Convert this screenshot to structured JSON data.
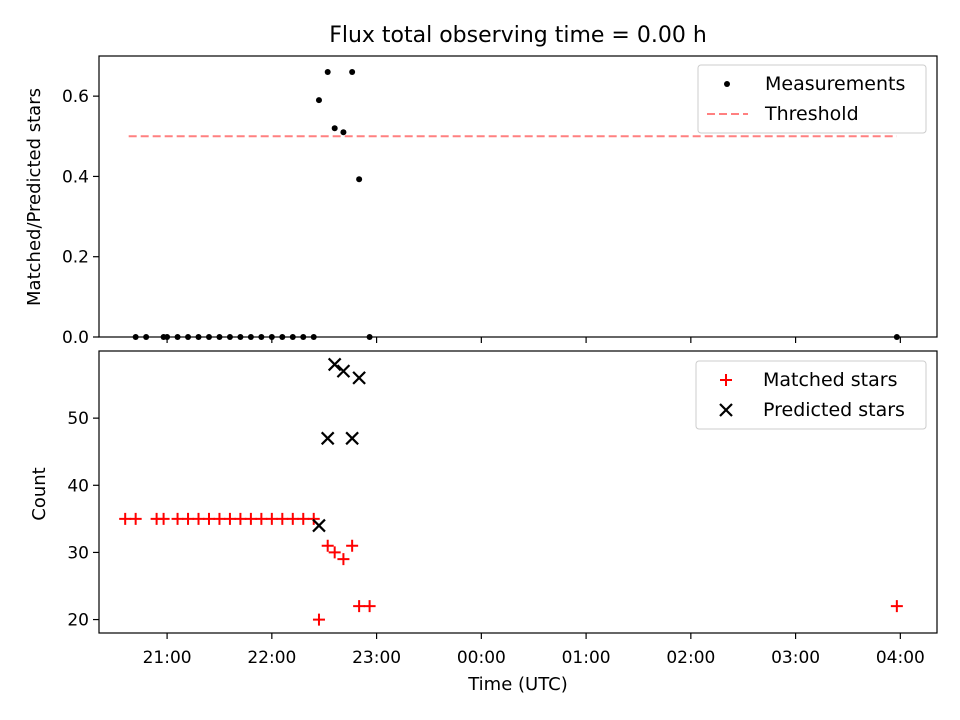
{
  "figure": {
    "title": "Flux total observing time = 0.00 h"
  },
  "chart_data": [
    {
      "type": "scatter",
      "ylabel": "Matched/Predicted stars",
      "ylim": [
        0,
        0.7
      ],
      "yticks": [
        0.0,
        0.2,
        0.4,
        0.6
      ],
      "ytick_labels": [
        "0.0",
        "0.2",
        "0.4",
        "0.6"
      ],
      "xlim": [
        "20:21",
        "04:21"
      ],
      "grid": false,
      "legend_position": "top-right",
      "series": [
        {
          "name": "Measurements",
          "marker": "dot",
          "color": "#000000",
          "points": [
            [
              "20:42",
              0.0
            ],
            [
              "20:48",
              0.0
            ],
            [
              "20:58",
              0.0
            ],
            [
              "21:00",
              0.0
            ],
            [
              "21:06",
              0.0
            ],
            [
              "21:12",
              0.0
            ],
            [
              "21:18",
              0.0
            ],
            [
              "21:24",
              0.0
            ],
            [
              "21:30",
              0.0
            ],
            [
              "21:36",
              0.0
            ],
            [
              "21:42",
              0.0
            ],
            [
              "21:48",
              0.0
            ],
            [
              "21:54",
              0.0
            ],
            [
              "22:00",
              0.0
            ],
            [
              "22:06",
              0.0
            ],
            [
              "22:12",
              0.0
            ],
            [
              "22:18",
              0.0
            ],
            [
              "22:24",
              0.0
            ],
            [
              "22:27",
              0.59
            ],
            [
              "22:32",
              0.66
            ],
            [
              "22:36",
              0.52
            ],
            [
              "22:41",
              0.51
            ],
            [
              "22:46",
              0.66
            ],
            [
              "22:50",
              0.393
            ],
            [
              "22:56",
              0.0
            ],
            [
              "03:58",
              0.0
            ]
          ]
        },
        {
          "name": "Threshold",
          "style": "dashed",
          "color": "#ff8080",
          "points": [
            [
              "20:38",
              0.5
            ],
            [
              "03:58",
              0.5
            ]
          ]
        }
      ]
    },
    {
      "type": "scatter",
      "xlabel": "Time (UTC)",
      "ylabel": "Count",
      "ylim": [
        18,
        60
      ],
      "yticks": [
        20,
        30,
        40,
        50
      ],
      "xlim": [
        "20:21",
        "04:21"
      ],
      "xtick_labels": [
        "21:00",
        "22:00",
        "23:00",
        "00:00",
        "01:00",
        "02:00",
        "03:00",
        "04:00"
      ],
      "grid": false,
      "legend_position": "top-right",
      "series": [
        {
          "name": "Matched stars",
          "marker": "plus",
          "color": "#ff0000",
          "points": [
            [
              "20:36",
              35
            ],
            [
              "20:42",
              35
            ],
            [
              "20:54",
              35
            ],
            [
              "20:58",
              35
            ],
            [
              "21:06",
              35
            ],
            [
              "21:12",
              35
            ],
            [
              "21:18",
              35
            ],
            [
              "21:24",
              35
            ],
            [
              "21:30",
              35
            ],
            [
              "21:36",
              35
            ],
            [
              "21:42",
              35
            ],
            [
              "21:48",
              35
            ],
            [
              "21:54",
              35
            ],
            [
              "22:00",
              35
            ],
            [
              "22:06",
              35
            ],
            [
              "22:12",
              35
            ],
            [
              "22:18",
              35
            ],
            [
              "22:24",
              35
            ],
            [
              "22:27",
              20
            ],
            [
              "22:32",
              31
            ],
            [
              "22:36",
              30
            ],
            [
              "22:41",
              29
            ],
            [
              "22:46",
              31
            ],
            [
              "22:50",
              22
            ],
            [
              "22:56",
              22
            ],
            [
              "03:58",
              22
            ]
          ]
        },
        {
          "name": "Predicted stars",
          "marker": "x",
          "color": "#000000",
          "points": [
            [
              "22:27",
              34
            ],
            [
              "22:32",
              47
            ],
            [
              "22:36",
              58
            ],
            [
              "22:41",
              57
            ],
            [
              "22:46",
              47
            ],
            [
              "22:50",
              56
            ]
          ]
        }
      ]
    }
  ]
}
